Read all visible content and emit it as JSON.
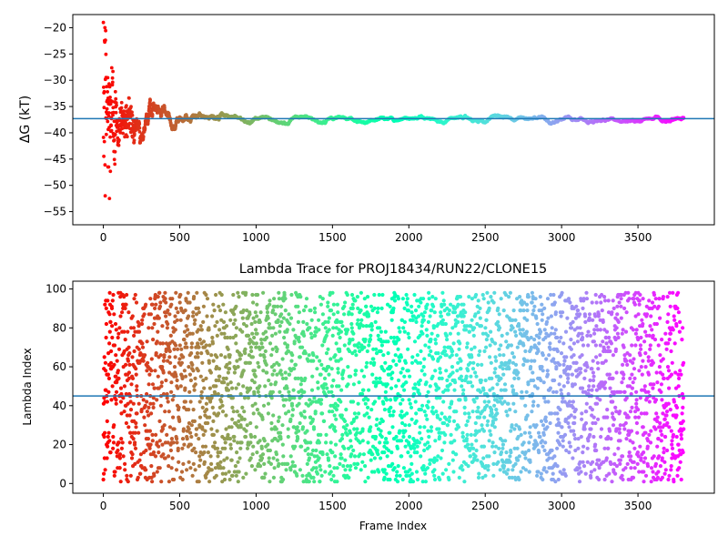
{
  "chart_data": [
    {
      "type": "scatter",
      "title": "",
      "xlabel": "",
      "ylabel": "ΔG (kT)",
      "xlim": [
        -200,
        4000
      ],
      "ylim": [
        -57.5,
        -17.5
      ],
      "xticks": [
        0,
        500,
        1000,
        1500,
        2000,
        2500,
        3000,
        3500
      ],
      "yticks": [
        -55,
        -50,
        -45,
        -40,
        -35,
        -30,
        -25,
        -20
      ],
      "hline": -37.3,
      "n_points": 3800,
      "colormap": "rainbow",
      "hline_color": "#1f77b4",
      "grid": false,
      "series": [
        {
          "x": [
            10,
            30,
            50,
            70,
            100,
            150,
            200,
            300,
            400,
            500,
            600,
            700,
            800,
            1000,
            1200,
            1400,
            1600,
            1800,
            2000,
            2200,
            2500,
            3000,
            3500,
            3800
          ],
          "y": [
            -40,
            -30,
            -35,
            -38,
            -37,
            -37,
            -35,
            -37,
            -37,
            -37.5,
            -37,
            -37.8,
            -37.7,
            -37.5,
            -37.3,
            -37.1,
            -37.4,
            -37.6,
            -37.7,
            -37.9,
            -37.6,
            -37.5,
            -37.6,
            -37.6
          ]
        }
      ]
    },
    {
      "type": "scatter",
      "title": "Lambda Trace for PROJ18434/RUN22/CLONE15",
      "xlabel": "Frame Index",
      "ylabel": "Lambda Index",
      "xlim": [
        -200,
        4000
      ],
      "ylim": [
        -5,
        104
      ],
      "xticks": [
        0,
        500,
        1000,
        1500,
        2000,
        2500,
        3000,
        3500
      ],
      "yticks": [
        0,
        20,
        40,
        60,
        80,
        100
      ],
      "hline": 45,
      "n_points": 3800,
      "colormap": "rainbow",
      "hline_color": "#1f77b4",
      "grid": false,
      "series": [
        {
          "note_values": "lambda index sampled uniformly over 0–99 for each frame",
          "range": [
            0,
            99
          ]
        }
      ]
    }
  ]
}
